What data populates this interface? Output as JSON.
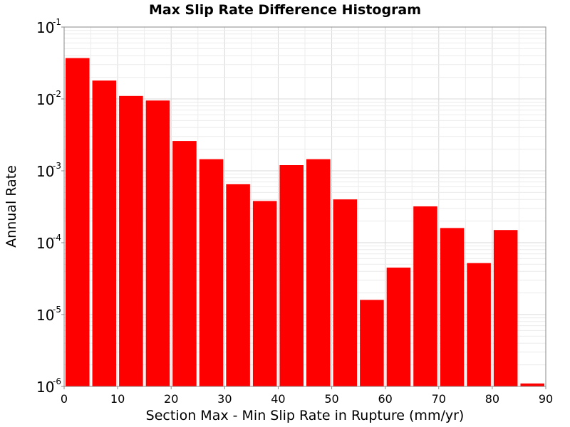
{
  "chart_data": {
    "type": "bar",
    "title": "Max Slip Rate Difference Histogram",
    "xlabel": "Section Max - Min Slip Rate in Rupture (mm/yr)",
    "ylabel": "Annual Rate",
    "xlim": [
      0,
      90
    ],
    "ylim": [
      1e-06,
      0.1
    ],
    "yscale": "log",
    "bin_width": 5,
    "x_ticks": [
      0,
      10,
      20,
      30,
      40,
      50,
      60,
      70,
      80,
      90
    ],
    "y_ticks": [
      {
        "value": 1e-06,
        "base": "10",
        "exp": "-6"
      },
      {
        "value": 1e-05,
        "base": "10",
        "exp": "-5"
      },
      {
        "value": 0.0001,
        "base": "10",
        "exp": "-4"
      },
      {
        "value": 0.001,
        "base": "10",
        "exp": "-3"
      },
      {
        "value": 0.01,
        "base": "10",
        "exp": "-2"
      },
      {
        "value": 0.1,
        "base": "10",
        "exp": "-1"
      }
    ],
    "grid": true,
    "bar_color": "#ff0000",
    "bins": [
      {
        "x": 2.5,
        "value": 0.037
      },
      {
        "x": 7.5,
        "value": 0.018
      },
      {
        "x": 12.5,
        "value": 0.011
      },
      {
        "x": 17.5,
        "value": 0.0095
      },
      {
        "x": 22.5,
        "value": 0.0026
      },
      {
        "x": 27.5,
        "value": 0.00145
      },
      {
        "x": 32.5,
        "value": 0.00065
      },
      {
        "x": 37.5,
        "value": 0.00038
      },
      {
        "x": 42.5,
        "value": 0.0012
      },
      {
        "x": 47.5,
        "value": 0.00145
      },
      {
        "x": 52.5,
        "value": 0.0004
      },
      {
        "x": 57.5,
        "value": 1.6e-05
      },
      {
        "x": 62.5,
        "value": 4.5e-05
      },
      {
        "x": 67.5,
        "value": 0.00032
      },
      {
        "x": 72.5,
        "value": 0.00016
      },
      {
        "x": 77.5,
        "value": 5.2e-05
      },
      {
        "x": 82.5,
        "value": 0.00015
      },
      {
        "x": 87.5,
        "value": 1.1e-06
      }
    ]
  }
}
